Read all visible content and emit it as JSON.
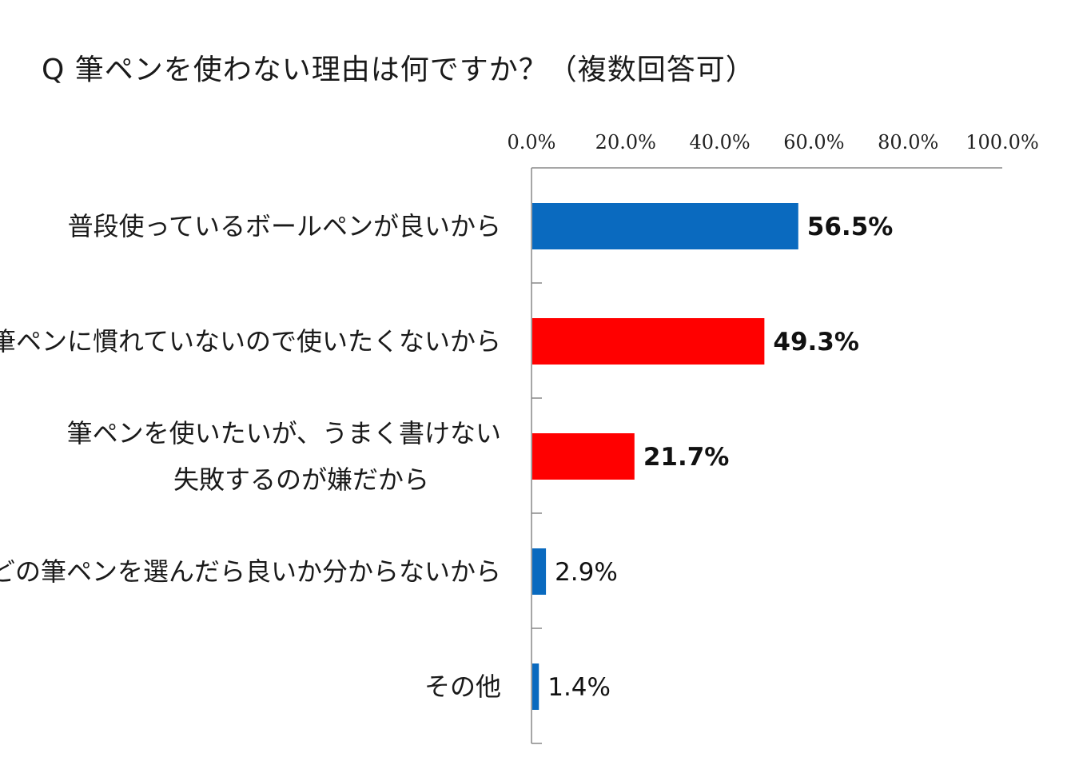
{
  "chart_data": {
    "type": "bar",
    "orientation": "horizontal",
    "title": "Q 筆ペンを使わない理由は何ですか？（複数回答可）",
    "xlim": [
      0,
      100
    ],
    "xticks": [
      "0.0%",
      "20.0%",
      "40.0%",
      "60.0%",
      "80.0%",
      "100.0%"
    ],
    "xtick_values": [
      0,
      20,
      40,
      60,
      80,
      100
    ],
    "axis_position": "top",
    "grid": false,
    "categories": [
      {
        "lines": [
          "普段使っているボールペンが良いから"
        ],
        "value": 56.5,
        "label": "56.5%",
        "color": "#0a6abf",
        "bold": true
      },
      {
        "lines": [
          "筆ペンに慣れていないので使いたくないから"
        ],
        "value": 49.3,
        "label": "49.3%",
        "color": "#ff0000",
        "bold": true
      },
      {
        "lines": [
          "筆ペンを使いたいが、うまく書けない",
          "失敗するのが嫌だから"
        ],
        "value": 21.7,
        "label": "21.7%",
        "color": "#ff0000",
        "bold": true
      },
      {
        "lines": [
          "どの筆ペンを選んだら良いか分からないから"
        ],
        "value": 2.9,
        "label": "2.9%",
        "color": "#0a6abf",
        "bold": false
      },
      {
        "lines": [
          "その他"
        ],
        "value": 1.4,
        "label": "1.4%",
        "color": "#0a6abf",
        "bold": false
      }
    ]
  }
}
